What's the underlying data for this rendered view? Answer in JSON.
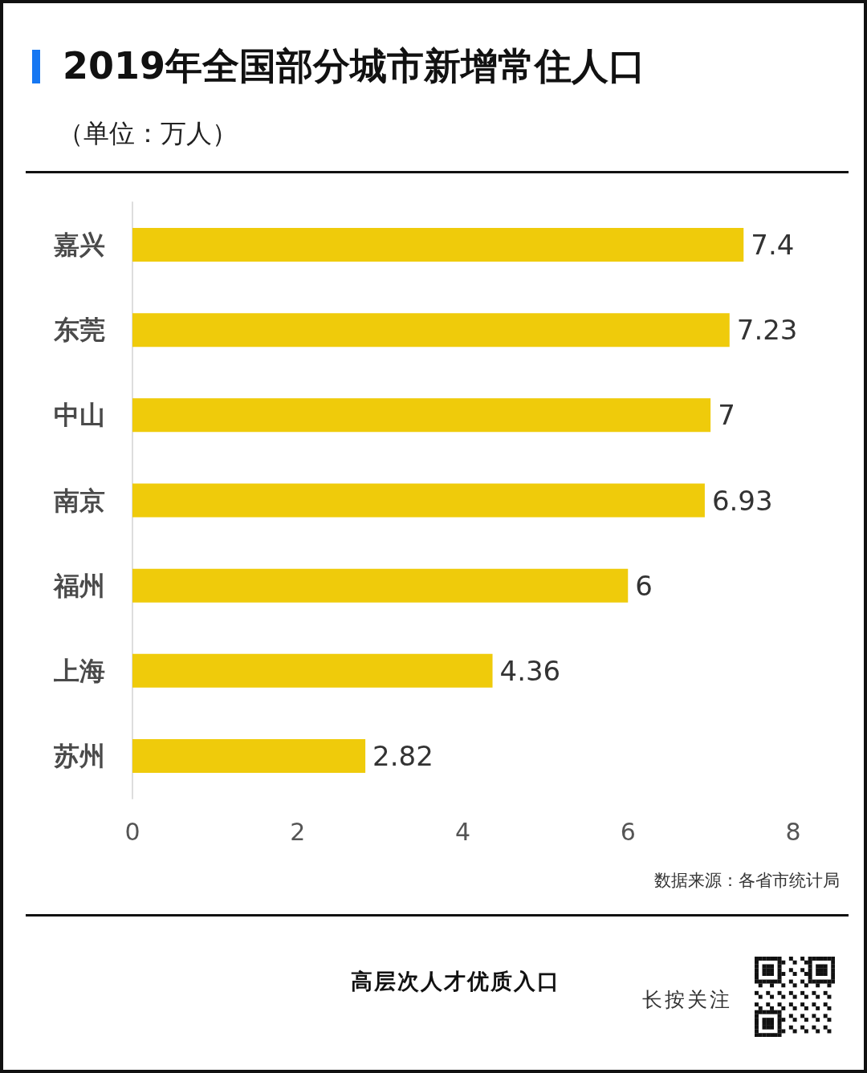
{
  "chart_data": {
    "type": "bar",
    "orientation": "horizontal",
    "title": "2019年全国部分城市新增常住人口",
    "subtitle": "（单位：万人）",
    "categories": [
      "嘉兴",
      "东莞",
      "中山",
      "南京",
      "福州",
      "上海",
      "苏州"
    ],
    "values": [
      7.4,
      7.23,
      7,
      6.93,
      6,
      4.36,
      2.82
    ],
    "color": "#efcb0b",
    "xlim": [
      0,
      8
    ],
    "xticks": [
      0,
      2,
      4,
      6,
      8
    ],
    "data_labels": true,
    "annotations": [
      "数据来源：各省市统计局",
      "高层次人才优质入口",
      "长按关注"
    ]
  }
}
